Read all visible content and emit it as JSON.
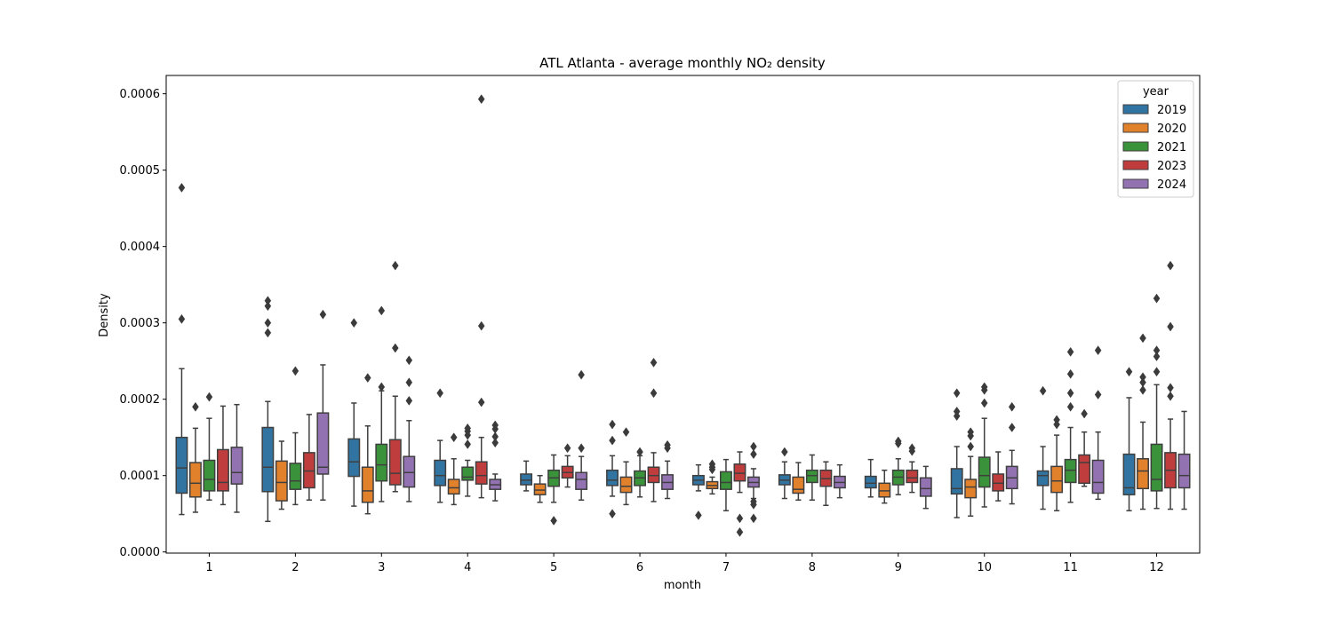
{
  "chart_data": {
    "type": "box",
    "title": "ATL Atlanta - average monthly NO₂ density",
    "xlabel": "month",
    "ylabel": "Density",
    "categories": [
      "1",
      "2",
      "3",
      "4",
      "5",
      "6",
      "7",
      "8",
      "9",
      "10",
      "11",
      "12"
    ],
    "ylim": [
      -1.5e-06,
      0.000624
    ],
    "yticks": [
      "0.0000",
      "0.0001",
      "0.0002",
      "0.0003",
      "0.0004",
      "0.0005",
      "0.0006"
    ],
    "ytick_values": [
      0,
      0.0001,
      0.0002,
      0.0003,
      0.0004,
      0.0005,
      0.0006
    ],
    "grid": false,
    "legend": {
      "title": "year",
      "position": "top-right"
    },
    "series": [
      {
        "name": "2019",
        "color": "#3274a1",
        "boxes": [
          {
            "whislo": 4.9e-05,
            "q1": 7.7e-05,
            "med": 0.00011,
            "q3": 0.00015,
            "whishi": 0.00024,
            "fliers": [
              0.000305,
              0.000477
            ]
          },
          {
            "whislo": 4e-05,
            "q1": 7.9e-05,
            "med": 0.000111,
            "q3": 0.000163,
            "whishi": 0.000197,
            "fliers": [
              0.000287,
              0.0003,
              0.000322,
              0.000329
            ]
          },
          {
            "whislo": 6e-05,
            "q1": 9.9e-05,
            "med": 0.000118,
            "q3": 0.000148,
            "whishi": 0.000195,
            "fliers": [
              0.0003
            ]
          },
          {
            "whislo": 6.5e-05,
            "q1": 8.7e-05,
            "med": 0.0001,
            "q3": 0.00012,
            "whishi": 0.000146,
            "fliers": [
              0.000208
            ]
          },
          {
            "whislo": 8e-05,
            "q1": 8.8e-05,
            "med": 9.4e-05,
            "q3": 0.000102,
            "whishi": 0.000119,
            "fliers": []
          },
          {
            "whislo": 7.3e-05,
            "q1": 8.7e-05,
            "med": 9.4e-05,
            "q3": 0.000107,
            "whishi": 0.000126,
            "fliers": [
              5e-05,
              0.000146,
              0.000167
            ]
          },
          {
            "whislo": 8e-05,
            "q1": 8.8e-05,
            "med": 9.4e-05,
            "q3": 0.0001,
            "whishi": 0.000114,
            "fliers": [
              4.8e-05
            ]
          },
          {
            "whislo": 7e-05,
            "q1": 8.8e-05,
            "med": 9.4e-05,
            "q3": 0.000101,
            "whishi": 0.000118,
            "fliers": [
              0.000131
            ]
          },
          {
            "whislo": 7.2e-05,
            "q1": 8.4e-05,
            "med": 9e-05,
            "q3": 9.9e-05,
            "whishi": 0.000121,
            "fliers": []
          },
          {
            "whislo": 4.5e-05,
            "q1": 7.6e-05,
            "med": 8.3e-05,
            "q3": 0.000109,
            "whishi": 0.000138,
            "fliers": [
              0.000178,
              0.000184,
              0.000208
            ]
          },
          {
            "whislo": 5.6e-05,
            "q1": 8.7e-05,
            "med": 0.0001,
            "q3": 0.000106,
            "whishi": 0.000138,
            "fliers": [
              0.000211
            ]
          },
          {
            "whislo": 5.4e-05,
            "q1": 7.5e-05,
            "med": 8.4e-05,
            "q3": 0.000128,
            "whishi": 0.000202,
            "fliers": [
              0.000236
            ]
          }
        ]
      },
      {
        "name": "2020",
        "color": "#e1812c",
        "boxes": [
          {
            "whislo": 5.2e-05,
            "q1": 7.2e-05,
            "med": 9e-05,
            "q3": 0.000117,
            "whishi": 0.000162,
            "fliers": [
              0.00019
            ]
          },
          {
            "whislo": 5.6e-05,
            "q1": 6.7e-05,
            "med": 9.1e-05,
            "q3": 0.000119,
            "whishi": 0.000145,
            "fliers": []
          },
          {
            "whislo": 5e-05,
            "q1": 6.5e-05,
            "med": 8e-05,
            "q3": 0.000111,
            "whishi": 0.000165,
            "fliers": [
              0.000228
            ]
          },
          {
            "whislo": 6.2e-05,
            "q1": 7.6e-05,
            "med": 8.4e-05,
            "q3": 9.5e-05,
            "whishi": 0.000122,
            "fliers": [
              0.00015
            ]
          },
          {
            "whislo": 6.5e-05,
            "q1": 7.5e-05,
            "med": 8.1e-05,
            "q3": 8.9e-05,
            "whishi": 0.0001,
            "fliers": []
          },
          {
            "whislo": 6.2e-05,
            "q1": 7.8e-05,
            "med": 8.6e-05,
            "q3": 9.8e-05,
            "whishi": 0.000118,
            "fliers": [
              0.000157
            ]
          },
          {
            "whislo": 7.6e-05,
            "q1": 8.3e-05,
            "med": 8.7e-05,
            "q3": 9.2e-05,
            "whishi": 9.8e-05,
            "fliers": [
              0.000108,
              0.000111,
              0.000115
            ]
          },
          {
            "whislo": 6.8e-05,
            "q1": 7.7e-05,
            "med": 8.2e-05,
            "q3": 9.8e-05,
            "whishi": 0.000117,
            "fliers": []
          },
          {
            "whislo": 6.4e-05,
            "q1": 7.2e-05,
            "med": 8e-05,
            "q3": 9e-05,
            "whishi": 0.000107,
            "fliers": []
          },
          {
            "whislo": 4.7e-05,
            "q1": 7.1e-05,
            "med": 8.5e-05,
            "q3": 9.5e-05,
            "whishi": 0.000125,
            "fliers": [
              0.000138,
              0.000152,
              0.000157
            ]
          },
          {
            "whislo": 5.4e-05,
            "q1": 7.8e-05,
            "med": 9.3e-05,
            "q3": 0.000112,
            "whishi": 0.000153,
            "fliers": [
              0.000167,
              0.000173
            ]
          },
          {
            "whislo": 5.6e-05,
            "q1": 8.3e-05,
            "med": 0.000106,
            "q3": 0.000122,
            "whishi": 0.00017,
            "fliers": [
              0.000212,
              0.000222,
              0.000229,
              0.00028
            ]
          }
        ]
      },
      {
        "name": "2021",
        "color": "#3a923a",
        "boxes": [
          {
            "whislo": 6.8e-05,
            "q1": 8e-05,
            "med": 9.5e-05,
            "q3": 0.00012,
            "whishi": 0.000175,
            "fliers": [
              0.000203
            ]
          },
          {
            "whislo": 6.2e-05,
            "q1": 8.2e-05,
            "med": 9.3e-05,
            "q3": 0.000116,
            "whishi": 0.000156,
            "fliers": [
              0.000237
            ]
          },
          {
            "whislo": 6.6e-05,
            "q1": 9.3e-05,
            "med": 0.000114,
            "q3": 0.000141,
            "whishi": 0.000211,
            "fliers": [
              0.000216,
              0.000316
            ]
          },
          {
            "whislo": 7.3e-05,
            "q1": 9.4e-05,
            "med": 9.8e-05,
            "q3": 0.000111,
            "whishi": 0.00012,
            "fliers": [
              0.000141,
              0.000153,
              0.000158,
              0.000162
            ]
          },
          {
            "whislo": 6.5e-05,
            "q1": 8.6e-05,
            "med": 9.7e-05,
            "q3": 0.000107,
            "whishi": 0.000127,
            "fliers": [
              4.1e-05
            ]
          },
          {
            "whislo": 7.2e-05,
            "q1": 8.7e-05,
            "med": 9.7e-05,
            "q3": 0.000106,
            "whishi": 0.000126,
            "fliers": [
              0.000131
            ]
          },
          {
            "whislo": 5.4e-05,
            "q1": 8.2e-05,
            "med": 9.1e-05,
            "q3": 0.000105,
            "whishi": 0.000121,
            "fliers": []
          },
          {
            "whislo": 6.8e-05,
            "q1": 9.1e-05,
            "med": 0.0001,
            "q3": 0.000107,
            "whishi": 0.000127,
            "fliers": []
          },
          {
            "whislo": 7.5e-05,
            "q1": 8.8e-05,
            "med": 9.8e-05,
            "q3": 0.000107,
            "whishi": 0.000122,
            "fliers": [
              0.000142,
              0.000145
            ]
          },
          {
            "whislo": 5.9e-05,
            "q1": 8.5e-05,
            "med": 0.0001,
            "q3": 0.000124,
            "whishi": 0.000175,
            "fliers": [
              0.000195,
              0.000212,
              0.000216
            ]
          },
          {
            "whislo": 6.5e-05,
            "q1": 9.1e-05,
            "med": 0.000107,
            "q3": 0.000121,
            "whishi": 0.000163,
            "fliers": [
              0.00019,
              0.000208,
              0.000233,
              0.000262
            ]
          },
          {
            "whislo": 5.7e-05,
            "q1": 8e-05,
            "med": 9.5e-05,
            "q3": 0.000141,
            "whishi": 0.000219,
            "fliers": [
              0.000236,
              0.000256,
              0.000264,
              0.000332
            ]
          }
        ]
      },
      {
        "name": "2023",
        "color": "#c03d3e",
        "boxes": [
          {
            "whislo": 6.2e-05,
            "q1": 8e-05,
            "med": 9.1e-05,
            "q3": 0.000134,
            "whishi": 0.000191,
            "fliers": []
          },
          {
            "whislo": 6.8e-05,
            "q1": 8.4e-05,
            "med": 0.000106,
            "q3": 0.00013,
            "whishi": 0.00018,
            "fliers": []
          },
          {
            "whislo": 7.9e-05,
            "q1": 8.8e-05,
            "med": 0.000103,
            "q3": 0.000147,
            "whishi": 0.000204,
            "fliers": [
              0.000267,
              0.000375
            ]
          },
          {
            "whislo": 7.1e-05,
            "q1": 8.9e-05,
            "med": 0.0001,
            "q3": 0.000118,
            "whishi": 0.00015,
            "fliers": [
              0.000196,
              0.000296,
              0.000593
            ]
          },
          {
            "whislo": 8.5e-05,
            "q1": 9.7e-05,
            "med": 0.000104,
            "q3": 0.000112,
            "whishi": 0.000126,
            "fliers": [
              0.000136
            ]
          },
          {
            "whislo": 6.6e-05,
            "q1": 9.1e-05,
            "med": 0.0001,
            "q3": 0.000111,
            "whishi": 0.00013,
            "fliers": [
              0.000208,
              0.000248
            ]
          },
          {
            "whislo": 7.8e-05,
            "q1": 9.3e-05,
            "med": 0.000103,
            "q3": 0.000115,
            "whishi": 0.000131,
            "fliers": [
              2.6e-05,
              4.4e-05
            ]
          },
          {
            "whislo": 6.1e-05,
            "q1": 8.6e-05,
            "med": 9.6e-05,
            "q3": 0.000107,
            "whishi": 0.000118,
            "fliers": []
          },
          {
            "whislo": 7.8e-05,
            "q1": 9.1e-05,
            "med": 9.7e-05,
            "q3": 0.000107,
            "whishi": 0.000118,
            "fliers": [
              0.000132,
              0.000136
            ]
          },
          {
            "whislo": 6.7e-05,
            "q1": 8e-05,
            "med": 9e-05,
            "q3": 0.000102,
            "whishi": 0.000131,
            "fliers": []
          },
          {
            "whislo": 8.6e-05,
            "q1": 9e-05,
            "med": 0.000117,
            "q3": 0.000127,
            "whishi": 0.000157,
            "fliers": [
              0.000181
            ]
          },
          {
            "whislo": 5.6e-05,
            "q1": 8.4e-05,
            "med": 0.000107,
            "q3": 0.00013,
            "whishi": 0.000174,
            "fliers": [
              0.000204,
              0.000215,
              0.000295,
              0.000375
            ]
          }
        ]
      },
      {
        "name": "2024",
        "color": "#9372b2",
        "boxes": [
          {
            "whislo": 5.2e-05,
            "q1": 8.9e-05,
            "med": 0.000104,
            "q3": 0.000137,
            "whishi": 0.000193,
            "fliers": []
          },
          {
            "whislo": 6.8e-05,
            "q1": 0.000102,
            "med": 0.000111,
            "q3": 0.000182,
            "whishi": 0.000245,
            "fliers": [
              0.000311
            ]
          },
          {
            "whislo": 6.6e-05,
            "q1": 8.5e-05,
            "med": 0.000104,
            "q3": 0.000125,
            "whishi": 0.000172,
            "fliers": [
              0.000198,
              0.000222,
              0.000251
            ]
          },
          {
            "whislo": 6.7e-05,
            "q1": 8.2e-05,
            "med": 8.8e-05,
            "q3": 9.5e-05,
            "whishi": 0.000102,
            "fliers": [
              0.000143,
              0.000151,
              0.000161,
              0.000166
            ]
          },
          {
            "whislo": 6.8e-05,
            "q1": 8.2e-05,
            "med": 9.5e-05,
            "q3": 0.000104,
            "whishi": 0.000125,
            "fliers": [
              0.000136,
              0.000232
            ]
          },
          {
            "whislo": 7e-05,
            "q1": 8.2e-05,
            "med": 9.1e-05,
            "q3": 0.000101,
            "whishi": 0.000119,
            "fliers": [
              0.000136,
              0.00014
            ]
          },
          {
            "whislo": 7e-05,
            "q1": 8.5e-05,
            "med": 9.1e-05,
            "q3": 9.8e-05,
            "whishi": 0.000109,
            "fliers": [
              4.4e-05,
              6.2e-05,
              6.6e-05,
              0.000128,
              0.000138
            ]
          },
          {
            "whislo": 7.1e-05,
            "q1": 8.4e-05,
            "med": 9.1e-05,
            "q3": 9.9e-05,
            "whishi": 0.000114,
            "fliers": []
          },
          {
            "whislo": 5.7e-05,
            "q1": 7.3e-05,
            "med": 8.3e-05,
            "q3": 9.7e-05,
            "whishi": 0.000112,
            "fliers": []
          },
          {
            "whislo": 6.3e-05,
            "q1": 8.3e-05,
            "med": 9.7e-05,
            "q3": 0.000112,
            "whishi": 0.000133,
            "fliers": [
              0.000163,
              0.00019
            ]
          },
          {
            "whislo": 6.9e-05,
            "q1": 7.7e-05,
            "med": 9.1e-05,
            "q3": 0.00012,
            "whishi": 0.000157,
            "fliers": [
              0.000206,
              0.000264
            ]
          },
          {
            "whislo": 5.6e-05,
            "q1": 8.4e-05,
            "med": 0.0001,
            "q3": 0.000128,
            "whishi": 0.000184,
            "fliers": []
          }
        ]
      }
    ]
  }
}
